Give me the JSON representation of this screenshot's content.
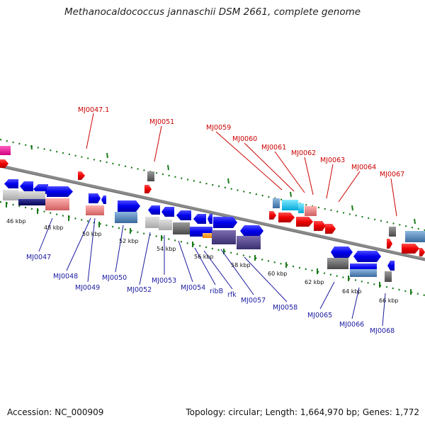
{
  "title": "Methanocaldococcus jannaschii DSM 2661, complete genome",
  "accession": "Accession: NC_000909",
  "topology": "Topology: circular; Length: 1,664,970 bp; Genes: 1,772",
  "colors": {
    "top_label": "#cc0000",
    "bottom_label": "#1a1aa0",
    "tick": "#1a7a1a",
    "backbone": "#8a8a8a"
  },
  "scale_labels": [
    "46 kbp",
    "48 kbp",
    "50 kbp",
    "52 kbp",
    "54 kbp",
    "56 kbp",
    "58 kbp",
    "60 kbp",
    "62 kbp",
    "64 kbp",
    "66 kbp"
  ],
  "top_gene_labels": [
    "MJ0047.1",
    "MJ0051",
    "MJ0059",
    "MJ0060",
    "MJ0061",
    "MJ0062",
    "MJ0063",
    "MJ0064",
    "MJ0067"
  ],
  "bottom_gene_labels": [
    "MJ0047",
    "MJ0048",
    "MJ0049",
    "MJ0050",
    "MJ0052",
    "MJ0053",
    "MJ0054",
    "ribB",
    "rfk",
    "MJ0057",
    "MJ0058",
    "MJ0065",
    "MJ0066",
    "MJ0068"
  ]
}
